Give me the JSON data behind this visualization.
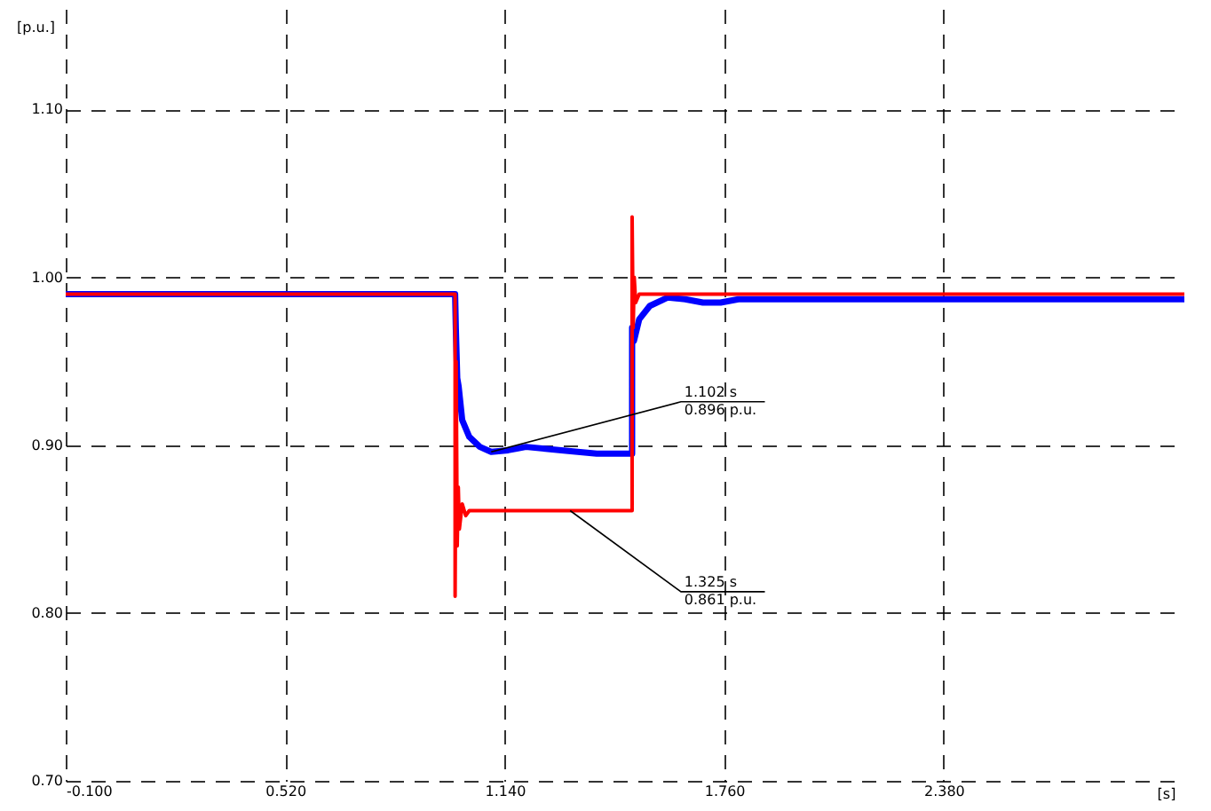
{
  "chart_data": {
    "type": "line",
    "xlabel": "[s]",
    "ylabel": "[p.u.]",
    "xlim": [
      -0.1,
      3.06
    ],
    "ylim": [
      0.7,
      1.16
    ],
    "xticks": [
      {
        "value": -0.1,
        "label": "-0.100"
      },
      {
        "value": 0.52,
        "label": "0.520"
      },
      {
        "value": 1.14,
        "label": "1.140"
      },
      {
        "value": 1.76,
        "label": "1.760"
      },
      {
        "value": 2.38,
        "label": "2.380"
      }
    ],
    "yticks": [
      {
        "value": 0.7,
        "label": "0.70"
      },
      {
        "value": 0.8,
        "label": "0.80"
      },
      {
        "value": 0.9,
        "label": "0.90"
      },
      {
        "value": 1.0,
        "label": "1.00"
      },
      {
        "value": 1.1,
        "label": "1.10"
      }
    ],
    "grid": true,
    "line_style": "solid",
    "marker": "none",
    "series": [
      {
        "color": "#ff0000",
        "x": [
          -0.1,
          1.0,
          1.0,
          1.003,
          1.006,
          1.009,
          1.012,
          1.02,
          1.03,
          1.04,
          1.5,
          1.5,
          1.503,
          1.506,
          1.51,
          1.52,
          3.06
        ],
        "values": [
          0.99,
          0.99,
          0.81,
          0.95,
          0.84,
          0.875,
          0.85,
          0.865,
          0.858,
          0.861,
          0.861,
          1.036,
          0.97,
          1.0,
          0.985,
          0.99,
          0.99
        ]
      },
      {
        "color": "#0000ff",
        "x": [
          -0.1,
          1.0,
          1.002,
          1.006,
          1.01,
          1.02,
          1.04,
          1.07,
          1.102,
          1.15,
          1.2,
          1.3,
          1.4,
          1.5,
          1.5,
          1.505,
          1.52,
          1.55,
          1.6,
          1.65,
          1.7,
          1.75,
          1.8,
          2.0,
          3.06
        ],
        "values": [
          0.99,
          0.99,
          0.97,
          0.94,
          0.935,
          0.915,
          0.905,
          0.899,
          0.896,
          0.897,
          0.899,
          0.897,
          0.895,
          0.895,
          0.97,
          0.962,
          0.975,
          0.983,
          0.988,
          0.987,
          0.985,
          0.985,
          0.987,
          0.987,
          0.987
        ]
      }
    ],
    "annotations": [
      {
        "text": "1.102 s\n0.896 p.u.",
        "x": 1.102,
        "y": 0.896
      },
      {
        "text": "1.325 s\n0.861 p.u.",
        "x": 1.325,
        "y": 0.861
      }
    ]
  }
}
